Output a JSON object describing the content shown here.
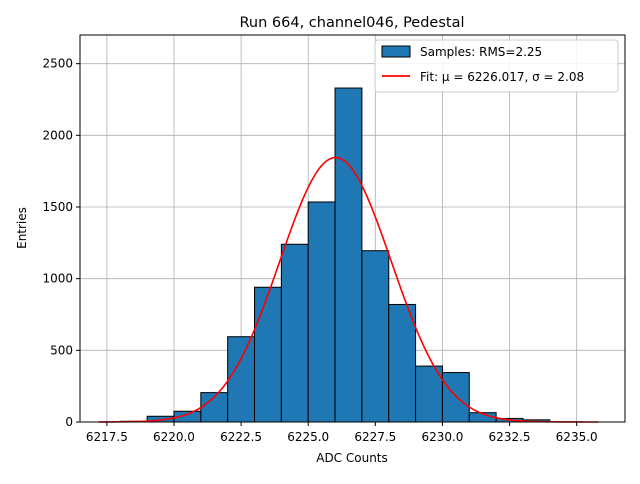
{
  "chart_data": {
    "type": "bar",
    "title": "Run 664, channel046, Pedestal",
    "xlabel": "ADC Counts",
    "ylabel": "Entries",
    "xlim": [
      6216.5,
      6236.8
    ],
    "ylim": [
      0,
      2700
    ],
    "xticks": [
      6217.5,
      6220.0,
      6222.5,
      6225.0,
      6227.5,
      6230.0,
      6232.5,
      6235.0
    ],
    "xtick_labels": [
      "6217.5",
      "6220.0",
      "6222.5",
      "6225.0",
      "6227.5",
      "6230.0",
      "6232.5",
      "6235.0"
    ],
    "yticks": [
      0,
      500,
      1000,
      1500,
      2000,
      2500
    ],
    "ytick_labels": [
      "0",
      "500",
      "1000",
      "1500",
      "2000",
      "2500"
    ],
    "grid": true,
    "legend_position": "top-right",
    "histogram": {
      "name": "Samples: RMS=2.25",
      "color": "#1f77b4",
      "edge_color": "#000000",
      "bin_edges": [
        6218,
        6219,
        6220,
        6221,
        6222,
        6223,
        6224,
        6225,
        6226,
        6227,
        6228,
        6229,
        6230,
        6231,
        6232,
        6233,
        6234
      ],
      "counts": [
        5,
        40,
        75,
        205,
        595,
        940,
        1240,
        1535,
        2330,
        1195,
        820,
        390,
        345,
        65,
        25,
        15
      ]
    },
    "fit": {
      "name": "Fit: μ = 6226.017, σ = 2.08",
      "color": "#ff0000",
      "mu": 6226.017,
      "sigma": 2.08,
      "amplitude": 1845,
      "x_range": [
        6217.2,
        6235.8
      ]
    }
  }
}
